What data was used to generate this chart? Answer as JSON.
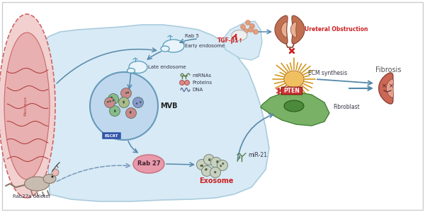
{
  "bg_outer": "#ffffff",
  "bg_cell": "#d8eaf5",
  "cell_border": "#aaccdd",
  "labels": {
    "rab5": "Rab 5",
    "early_endo": "Early endosome",
    "late_endo": "Late endosome",
    "mirna": "miRNAs",
    "proteins": "Proteins",
    "dna": "DNA",
    "mvb": "MVB",
    "escrt": "ESCRT",
    "rab27": "Rab 27",
    "exosome": "Exosome",
    "mir21": "miR-21",
    "fibroblast": "Fibroblast",
    "ecm": "ECM synthesis",
    "tgfb": "TGF-β1↑",
    "ureteral": "Ureteral Obstruction",
    "fibrosis": "Fibrosis",
    "rab27a": "Rab27a deleter",
    "nucleus": "Nucleus"
  },
  "colors": {
    "arrow_blue": "#5588aa",
    "arrow_dashed": "#7799bb",
    "red_label": "#cc2222",
    "green_fibroblast": "#6aaa55",
    "orange_ecm": "#e8a840",
    "brown_kidney": "#b86644",
    "pink_rab27": "#e89aaa",
    "mvb_fill": "#c0d8ee",
    "mvb_border": "#6699bb",
    "nucleus_outer": "#f2d0d0",
    "nucleus_inner": "#e8b0b0",
    "nucleus_border": "#cc6666",
    "escrt_fill": "#3355aa",
    "escrt_text": "#ffffff",
    "pten_fill": "#cc3333",
    "pten_text": "#ffffff",
    "tgf_red": "#cc2222",
    "salmon_dots": "#e0a080",
    "vesicle_gray": "#c8cfc0",
    "vesicle_green1": "#88bb88",
    "vesicle_red1": "#cc8888",
    "vesicle_blue1": "#8899cc"
  }
}
